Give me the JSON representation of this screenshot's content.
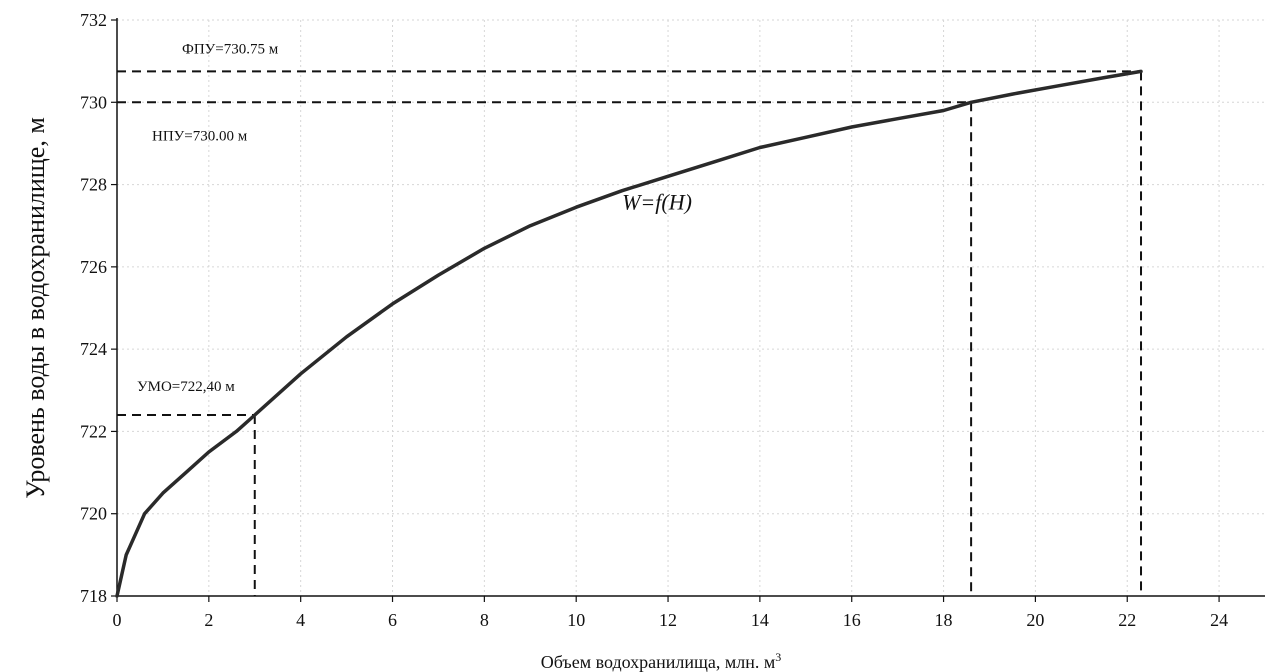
{
  "chart_data": {
    "type": "line",
    "xlabel": "Объем водохранилища, млн. м",
    "xlabel_sup": "3",
    "ylabel": "Уровень воды в водохранилище, м",
    "xlim": [
      0,
      25
    ],
    "ylim": [
      718,
      732
    ],
    "x_ticks": [
      0,
      2,
      4,
      6,
      8,
      10,
      12,
      14,
      16,
      18,
      20,
      22,
      24
    ],
    "y_ticks": [
      718,
      720,
      722,
      724,
      726,
      728,
      730,
      732
    ],
    "grid": true,
    "curve_label": "W=f(H)",
    "series": [
      {
        "x": [
          0,
          0.2,
          0.6,
          1.0,
          1.5,
          2.0,
          2.6,
          3.0,
          4.0,
          5.0,
          6.0,
          7.0,
          8.0,
          9.0,
          10.0,
          11.0,
          12.0,
          13.0,
          14.0,
          15.0,
          16.0,
          17.0,
          18.0,
          18.6,
          19.5,
          20.5,
          21.5,
          22.3
        ],
        "y": [
          718.0,
          719.0,
          720.0,
          720.5,
          721.0,
          721.5,
          722.0,
          722.4,
          723.4,
          724.3,
          725.1,
          725.8,
          726.45,
          727.0,
          727.45,
          727.85,
          728.2,
          728.55,
          728.9,
          729.15,
          729.4,
          729.6,
          729.8,
          730.0,
          730.2,
          730.4,
          730.6,
          730.75
        ]
      }
    ],
    "reference_levels": [
      {
        "label": "ФПУ=730.75 м",
        "x": 22.3,
        "y": 730.75
      },
      {
        "label": "НПУ=730.00 м",
        "x": 18.6,
        "y": 730.0
      },
      {
        "label": "УМО=722,40 м",
        "x": 3.0,
        "y": 722.4
      }
    ]
  }
}
